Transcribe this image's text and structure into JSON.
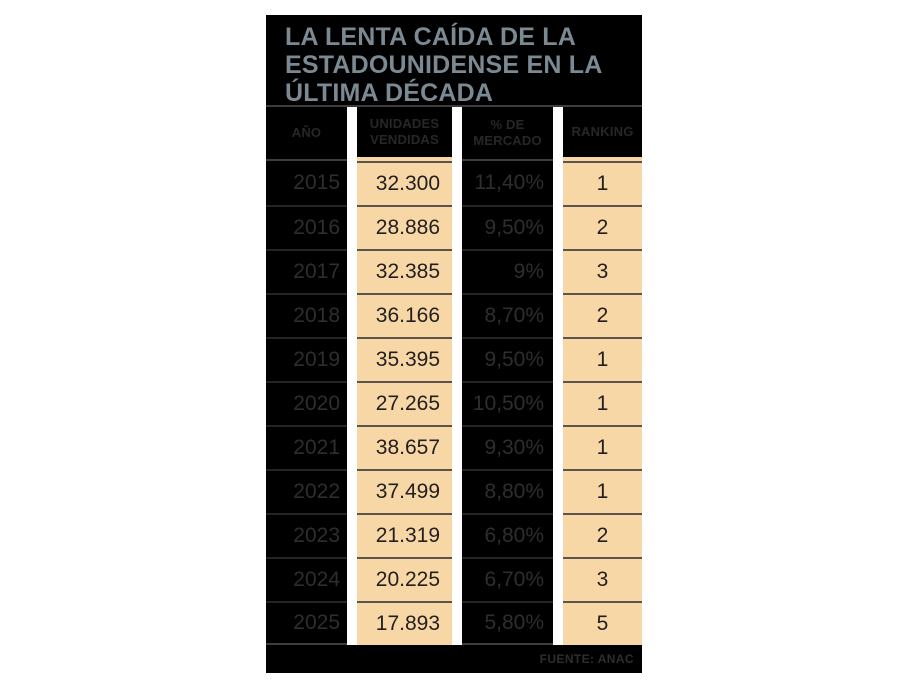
{
  "title": {
    "line1": "LA LENTA CAÍDA DE LA",
    "line2": "ESTADOUNIDENSE EN LA",
    "line3": "ÚLTIMA DÉCADA"
  },
  "table": {
    "headers": {
      "year": "AÑO",
      "units": "UNIDADES\nVENDIDAS",
      "share": "% DE\nMERCADO",
      "ranking": "RANKING"
    },
    "rows": [
      {
        "year": "2015",
        "units": "32.300",
        "share": "11,40%",
        "ranking": "1"
      },
      {
        "year": "2016",
        "units": "28.886",
        "share": "9,50%",
        "ranking": "2"
      },
      {
        "year": "2017",
        "units": "32.385",
        "share": "9%",
        "ranking": "3"
      },
      {
        "year": "2018",
        "units": "36.166",
        "share": "8,70%",
        "ranking": "2"
      },
      {
        "year": "2019",
        "units": "35.395",
        "share": "9,50%",
        "ranking": "1"
      },
      {
        "year": "2020",
        "units": "27.265",
        "share": "10,50%",
        "ranking": "1"
      },
      {
        "year": "2021",
        "units": "38.657",
        "share": "9,30%",
        "ranking": "1"
      },
      {
        "year": "2022",
        "units": "37.499",
        "share": "8,80%",
        "ranking": "1"
      },
      {
        "year": "2023",
        "units": "21.319",
        "share": "6,80%",
        "ranking": "2"
      },
      {
        "year": "2024",
        "units": "20.225",
        "share": "6,70%",
        "ranking": "3"
      },
      {
        "year": "2025",
        "units": "17.893",
        "share": "5,80%",
        "ranking": "5"
      }
    ]
  },
  "footer": {
    "source": "FUENTE: ANAC"
  },
  "colors": {
    "page_background": "#ffffff",
    "panel_background": "#000000",
    "title_text": "#7a8992",
    "header_text": "#272727",
    "dark_cell_text": "#2e2e2e",
    "highlight_cell": "#f8d7a6",
    "highlight_cell_text": "#221e1f",
    "highlight_row_divider": "#5b554d",
    "dark_row_divider": "#242424",
    "header_divider": "#3d3d3d"
  },
  "chart_data": {
    "type": "table",
    "title": "LA LENTA CAÍDA DE LA ESTADOUNIDENSE EN LA ÚLTIMA DÉCADA",
    "columns": [
      "AÑO",
      "UNIDADES VENDIDAS",
      "% DE MERCADO",
      "RANKING"
    ],
    "rows": [
      [
        2015,
        32300,
        11.4,
        1
      ],
      [
        2016,
        28886,
        9.5,
        2
      ],
      [
        2017,
        32385,
        9.0,
        3
      ],
      [
        2018,
        36166,
        8.7,
        2
      ],
      [
        2019,
        35395,
        9.5,
        1
      ],
      [
        2020,
        27265,
        10.5,
        1
      ],
      [
        2021,
        38657,
        9.3,
        1
      ],
      [
        2022,
        37499,
        8.8,
        1
      ],
      [
        2023,
        21319,
        6.8,
        2
      ],
      [
        2024,
        20225,
        6.7,
        3
      ],
      [
        2025,
        17893,
        5.8,
        5
      ]
    ],
    "source": "FUENTE: ANAC",
    "layout_hints": {
      "highlighted_columns": [
        "UNIDADES VENDIDAS",
        "RANKING"
      ],
      "number_format": "es-ES (dot thousands, comma decimals)"
    }
  }
}
